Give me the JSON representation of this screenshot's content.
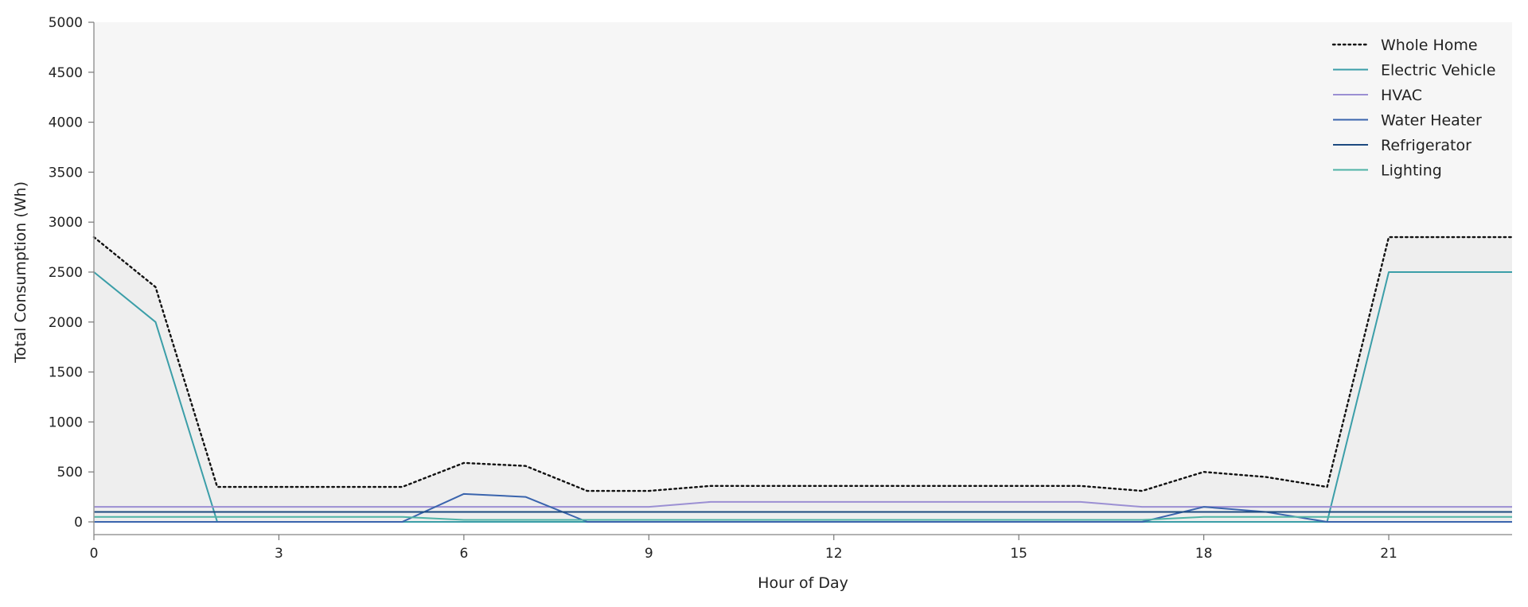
{
  "chart_data": {
    "type": "line",
    "title": "",
    "xlabel": "Hour of Day",
    "ylabel": "Total Consumption (Wh)",
    "xlim": [
      0,
      23
    ],
    "ylim": [
      0,
      5000
    ],
    "xticks": [
      0,
      3,
      6,
      9,
      12,
      15,
      18,
      21
    ],
    "yticks": [
      0,
      500,
      1000,
      1500,
      2000,
      2500,
      3000,
      3500,
      4000,
      4500,
      5000
    ],
    "grid": false,
    "legend_position": "top-right",
    "x": [
      0,
      1,
      2,
      3,
      4,
      5,
      6,
      7,
      8,
      9,
      10,
      11,
      12,
      13,
      14,
      15,
      16,
      17,
      18,
      19,
      20,
      21,
      22,
      23
    ],
    "series": [
      {
        "name": "Whole Home",
        "color": "#111111",
        "dash": "dotted",
        "values": [
          2850,
          2350,
          350,
          350,
          350,
          350,
          590,
          560,
          310,
          310,
          360,
          360,
          360,
          360,
          360,
          360,
          360,
          310,
          500,
          450,
          350,
          2850,
          2850,
          2850
        ]
      },
      {
        "name": "Electric Vehicle",
        "color": "#3b9ea8",
        "dash": "solid",
        "values": [
          2500,
          2000,
          0,
          0,
          0,
          0,
          0,
          0,
          0,
          0,
          0,
          0,
          0,
          0,
          0,
          0,
          0,
          0,
          0,
          0,
          0,
          2500,
          2500,
          2500
        ]
      },
      {
        "name": "HVAC",
        "color": "#9b8fd3",
        "dash": "solid",
        "values": [
          150,
          150,
          150,
          150,
          150,
          150,
          150,
          150,
          150,
          150,
          200,
          200,
          200,
          200,
          200,
          200,
          200,
          150,
          150,
          150,
          150,
          150,
          150,
          150
        ]
      },
      {
        "name": "Water Heater",
        "color": "#3a64ad",
        "dash": "solid",
        "values": [
          0,
          0,
          0,
          0,
          0,
          0,
          280,
          250,
          0,
          0,
          0,
          0,
          0,
          0,
          0,
          0,
          0,
          0,
          150,
          100,
          0,
          0,
          0,
          0
        ]
      },
      {
        "name": "Refrigerator",
        "color": "#1c4a80",
        "dash": "solid",
        "values": [
          100,
          100,
          100,
          100,
          100,
          100,
          100,
          100,
          100,
          100,
          100,
          100,
          100,
          100,
          100,
          100,
          100,
          100,
          100,
          100,
          100,
          100,
          100,
          100
        ]
      },
      {
        "name": "Lighting",
        "color": "#4fb3a6",
        "dash": "solid",
        "values": [
          50,
          50,
          50,
          50,
          50,
          50,
          20,
          20,
          20,
          20,
          20,
          20,
          20,
          20,
          20,
          20,
          20,
          20,
          50,
          50,
          50,
          50,
          50,
          50
        ]
      }
    ]
  }
}
